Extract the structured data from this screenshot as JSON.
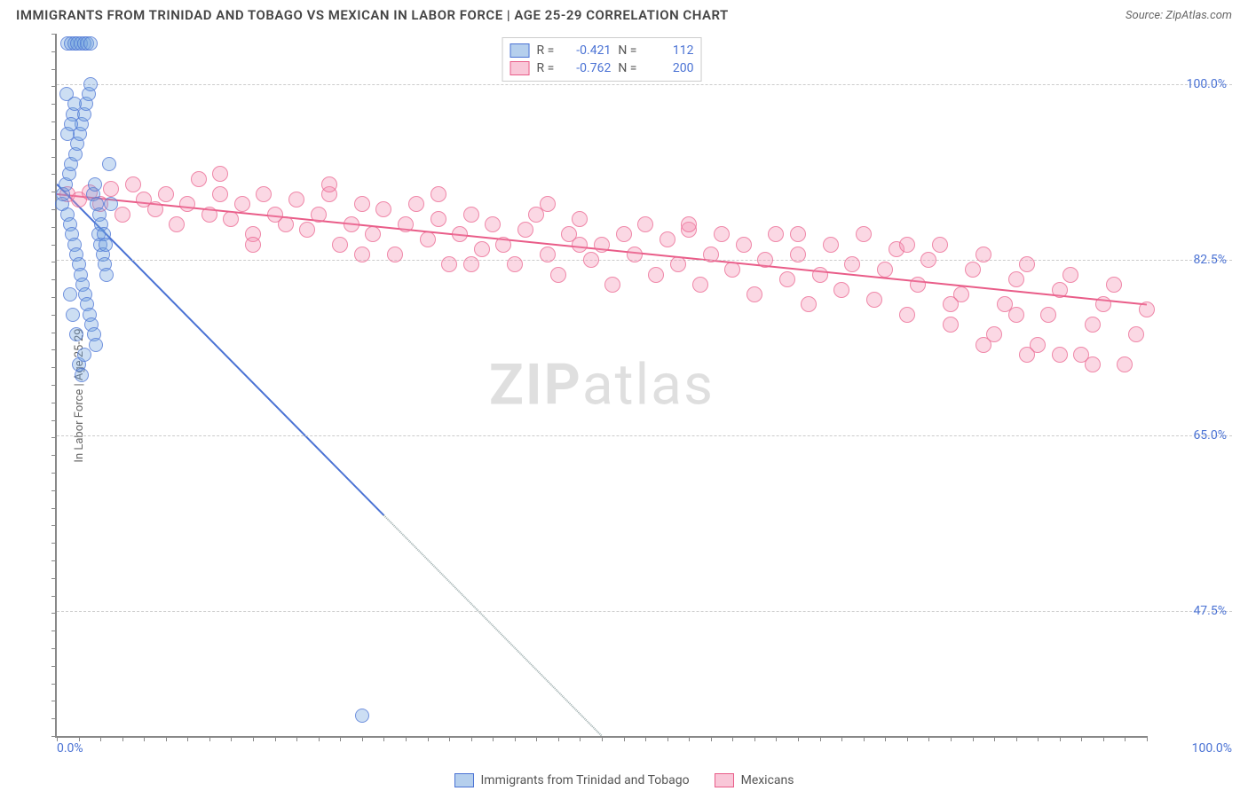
{
  "title": "IMMIGRANTS FROM TRINIDAD AND TOBAGO VS MEXICAN IN LABOR FORCE | AGE 25-29 CORRELATION CHART",
  "source": "Source: ZipAtlas.com",
  "ylabel": "In Labor Force | Age 25-29",
  "watermark_bold": "ZIP",
  "watermark_rest": "atlas",
  "axes": {
    "xlim": [
      0,
      100
    ],
    "ylim": [
      35,
      105
    ],
    "yticks": [
      {
        "v": 47.5,
        "label": "47.5%"
      },
      {
        "v": 65.0,
        "label": "65.0%"
      },
      {
        "v": 82.5,
        "label": "82.5%"
      },
      {
        "v": 100.0,
        "label": "100.0%"
      }
    ],
    "xticks_left": {
      "v": 0,
      "label": "0.0%"
    },
    "xticks_right": {
      "v": 100,
      "label": "100.0%"
    },
    "minor_x_count": 50,
    "minor_y_count": 40
  },
  "colors": {
    "blue_fill": "rgba(108,160,220,0.35)",
    "blue_stroke": "#4a72d4",
    "pink_fill": "rgba(244,143,177,0.35)",
    "pink_stroke": "#e95c88",
    "grid": "#cccccc",
    "axis": "#888888",
    "label_blue": "#4a72d4",
    "text": "#555555"
  },
  "legend_top": [
    {
      "color": "blue",
      "r_label": "R =",
      "r": "-0.421",
      "n_label": "N =",
      "n": "112"
    },
    {
      "color": "pink",
      "r_label": "R =",
      "r": "-0.762",
      "n_label": "N =",
      "n": "200"
    }
  ],
  "legend_bottom": [
    {
      "color": "blue",
      "label": "Immigrants from Trinidad and Tobago"
    },
    {
      "color": "pink",
      "label": "Mexicans"
    }
  ],
  "series": {
    "blue": {
      "trend": {
        "x1": 0,
        "y1": 90,
        "x2": 50,
        "y2": 35,
        "solid_until_x": 30
      },
      "points": [
        [
          0.5,
          88
        ],
        [
          0.6,
          89
        ],
        [
          0.8,
          90
        ],
        [
          1.0,
          87
        ],
        [
          1.1,
          91
        ],
        [
          1.2,
          86
        ],
        [
          1.3,
          92
        ],
        [
          1.4,
          85
        ],
        [
          1.5,
          97
        ],
        [
          1.6,
          84
        ],
        [
          1.7,
          93
        ],
        [
          1.8,
          83
        ],
        [
          1.9,
          94
        ],
        [
          2.0,
          82
        ],
        [
          2.1,
          95
        ],
        [
          2.2,
          81
        ],
        [
          0.9,
          99
        ],
        [
          1.0,
          104
        ],
        [
          1.3,
          104
        ],
        [
          1.6,
          104
        ],
        [
          1.9,
          104
        ],
        [
          2.2,
          104
        ],
        [
          2.5,
          104
        ],
        [
          2.8,
          104
        ],
        [
          3.1,
          104
        ],
        [
          2.3,
          96
        ],
        [
          2.4,
          80
        ],
        [
          2.5,
          97
        ],
        [
          2.6,
          79
        ],
        [
          2.7,
          98
        ],
        [
          2.8,
          78
        ],
        [
          2.9,
          99
        ],
        [
          3.0,
          77
        ],
        [
          3.1,
          100
        ],
        [
          3.2,
          76
        ],
        [
          3.3,
          89
        ],
        [
          3.4,
          75
        ],
        [
          3.5,
          90
        ],
        [
          3.6,
          74
        ],
        [
          3.7,
          88
        ],
        [
          3.8,
          85
        ],
        [
          3.9,
          87
        ],
        [
          4.0,
          84
        ],
        [
          4.1,
          86
        ],
        [
          4.2,
          83
        ],
        [
          4.3,
          85
        ],
        [
          4.4,
          82
        ],
        [
          4.5,
          84
        ],
        [
          4.6,
          81
        ],
        [
          2.0,
          72
        ],
        [
          2.3,
          71
        ],
        [
          2.5,
          73
        ],
        [
          1.8,
          75
        ],
        [
          1.5,
          77
        ],
        [
          1.2,
          79
        ],
        [
          4.8,
          92
        ],
        [
          5.0,
          88
        ],
        [
          1.0,
          95
        ],
        [
          1.3,
          96
        ],
        [
          1.6,
          98
        ],
        [
          28,
          37
        ]
      ]
    },
    "pink": {
      "trend": {
        "x1": 0,
        "y1": 89,
        "x2": 100,
        "y2": 78
      },
      "points": [
        [
          1,
          89
        ],
        [
          2,
          88.5
        ],
        [
          3,
          89.2
        ],
        [
          4,
          88
        ],
        [
          5,
          89.5
        ],
        [
          6,
          87
        ],
        [
          7,
          90
        ],
        [
          8,
          88.5
        ],
        [
          9,
          87.5
        ],
        [
          10,
          89
        ],
        [
          11,
          86
        ],
        [
          12,
          88
        ],
        [
          13,
          90.5
        ],
        [
          14,
          87
        ],
        [
          15,
          89
        ],
        [
          16,
          86.5
        ],
        [
          17,
          88
        ],
        [
          18,
          85
        ],
        [
          19,
          89
        ],
        [
          20,
          87
        ],
        [
          21,
          86
        ],
        [
          22,
          88.5
        ],
        [
          23,
          85.5
        ],
        [
          24,
          87
        ],
        [
          25,
          89
        ],
        [
          26,
          84
        ],
        [
          27,
          86
        ],
        [
          28,
          88
        ],
        [
          29,
          85
        ],
        [
          30,
          87.5
        ],
        [
          31,
          83
        ],
        [
          32,
          86
        ],
        [
          33,
          88
        ],
        [
          34,
          84.5
        ],
        [
          35,
          86.5
        ],
        [
          36,
          82
        ],
        [
          37,
          85
        ],
        [
          38,
          87
        ],
        [
          39,
          83.5
        ],
        [
          40,
          86
        ],
        [
          41,
          84
        ],
        [
          42,
          82
        ],
        [
          43,
          85.5
        ],
        [
          44,
          87
        ],
        [
          45,
          83
        ],
        [
          46,
          81
        ],
        [
          47,
          85
        ],
        [
          48,
          86.5
        ],
        [
          49,
          82.5
        ],
        [
          50,
          84
        ],
        [
          51,
          80
        ],
        [
          52,
          85
        ],
        [
          53,
          83
        ],
        [
          54,
          86
        ],
        [
          55,
          81
        ],
        [
          56,
          84.5
        ],
        [
          57,
          82
        ],
        [
          58,
          85.5
        ],
        [
          59,
          80
        ],
        [
          60,
          83
        ],
        [
          61,
          85
        ],
        [
          62,
          81.5
        ],
        [
          63,
          84
        ],
        [
          64,
          79
        ],
        [
          65,
          82.5
        ],
        [
          66,
          85
        ],
        [
          67,
          80.5
        ],
        [
          68,
          83
        ],
        [
          69,
          78
        ],
        [
          70,
          81
        ],
        [
          71,
          84
        ],
        [
          72,
          79.5
        ],
        [
          73,
          82
        ],
        [
          74,
          85
        ],
        [
          75,
          78.5
        ],
        [
          76,
          81.5
        ],
        [
          77,
          83.5
        ],
        [
          78,
          77
        ],
        [
          79,
          80
        ],
        [
          80,
          82.5
        ],
        [
          81,
          84
        ],
        [
          82,
          76
        ],
        [
          83,
          79
        ],
        [
          84,
          81.5
        ],
        [
          85,
          83
        ],
        [
          86,
          75
        ],
        [
          87,
          78
        ],
        [
          88,
          80.5
        ],
        [
          89,
          82
        ],
        [
          90,
          74
        ],
        [
          91,
          77
        ],
        [
          92,
          79.5
        ],
        [
          93,
          81
        ],
        [
          94,
          73
        ],
        [
          95,
          76
        ],
        [
          96,
          78
        ],
        [
          97,
          80
        ],
        [
          98,
          72
        ],
        [
          99,
          75
        ],
        [
          100,
          77.5
        ],
        [
          15,
          91
        ],
        [
          25,
          90
        ],
        [
          35,
          89
        ],
        [
          45,
          88
        ],
        [
          18,
          84
        ],
        [
          28,
          83
        ],
        [
          38,
          82
        ],
        [
          48,
          84
        ],
        [
          58,
          86
        ],
        [
          68,
          85
        ],
        [
          78,
          84
        ],
        [
          88,
          77
        ],
        [
          92,
          73
        ],
        [
          95,
          72
        ],
        [
          89,
          73
        ],
        [
          85,
          74
        ],
        [
          82,
          78
        ]
      ]
    }
  }
}
